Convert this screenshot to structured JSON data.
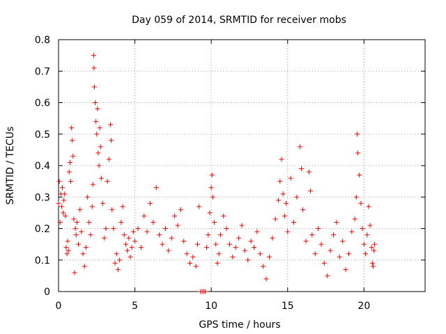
{
  "chart_data": {
    "type": "scatter",
    "title": "Day 059 of 2014, SRMTID for receiver mobs",
    "xlabel": "GPS time / hours",
    "ylabel": "SRMTID / TECUs",
    "xlim": [
      0,
      24
    ],
    "ylim": [
      0,
      0.8
    ],
    "x_ticks": [
      "0",
      "5",
      "10",
      "15",
      "20"
    ],
    "y_ticks": [
      "0",
      "0.1",
      "0.2",
      "0.3",
      "0.4",
      "0.5",
      "0.6",
      "0.7",
      "0.8"
    ],
    "grid": true,
    "marker": "+",
    "series": [
      {
        "name": "SRMTID",
        "color": "#ff0000",
        "points": [
          [
            0.0,
            0.28
          ],
          [
            0.05,
            0.35
          ],
          [
            0.1,
            0.22
          ],
          [
            0.15,
            0.31
          ],
          [
            0.2,
            0.27
          ],
          [
            0.25,
            0.33
          ],
          [
            0.3,
            0.25
          ],
          [
            0.35,
            0.29
          ],
          [
            0.4,
            0.31
          ],
          [
            0.45,
            0.24
          ],
          [
            0.5,
            0.14
          ],
          [
            0.55,
            0.12
          ],
          [
            0.6,
            0.16
          ],
          [
            0.65,
            0.13
          ],
          [
            0.7,
            0.38
          ],
          [
            0.75,
            0.41
          ],
          [
            0.8,
            0.35
          ],
          [
            0.85,
            0.52
          ],
          [
            0.9,
            0.48
          ],
          [
            0.95,
            0.43
          ],
          [
            1.0,
            0.23
          ],
          [
            1.05,
            0.06
          ],
          [
            1.1,
            0.2
          ],
          [
            1.15,
            0.18
          ],
          [
            1.2,
            0.22
          ],
          [
            1.3,
            0.15
          ],
          [
            1.4,
            0.26
          ],
          [
            1.5,
            0.19
          ],
          [
            1.6,
            0.12
          ],
          [
            1.7,
            0.08
          ],
          [
            1.8,
            0.14
          ],
          [
            1.9,
            0.3
          ],
          [
            2.0,
            0.22
          ],
          [
            2.1,
            0.18
          ],
          [
            2.2,
            0.27
          ],
          [
            2.25,
            0.34
          ],
          [
            2.3,
            0.75
          ],
          [
            2.32,
            0.71
          ],
          [
            2.35,
            0.65
          ],
          [
            2.4,
            0.6
          ],
          [
            2.45,
            0.54
          ],
          [
            2.5,
            0.5
          ],
          [
            2.55,
            0.58
          ],
          [
            2.6,
            0.44
          ],
          [
            2.65,
            0.4
          ],
          [
            2.7,
            0.52
          ],
          [
            2.75,
            0.46
          ],
          [
            2.8,
            0.36
          ],
          [
            2.9,
            0.28
          ],
          [
            3.0,
            0.17
          ],
          [
            3.1,
            0.2
          ],
          [
            3.2,
            0.35
          ],
          [
            3.3,
            0.42
          ],
          [
            3.4,
            0.53
          ],
          [
            3.45,
            0.48
          ],
          [
            3.5,
            0.26
          ],
          [
            3.6,
            0.2
          ],
          [
            3.7,
            0.09
          ],
          [
            3.8,
            0.12
          ],
          [
            3.9,
            0.07
          ],
          [
            4.0,
            0.1
          ],
          [
            4.1,
            0.22
          ],
          [
            4.2,
            0.27
          ],
          [
            4.3,
            0.18
          ],
          [
            4.4,
            0.15
          ],
          [
            4.5,
            0.13
          ],
          [
            4.6,
            0.17
          ],
          [
            4.7,
            0.11
          ],
          [
            4.8,
            0.14
          ],
          [
            4.9,
            0.19
          ],
          [
            5.0,
            0.16
          ],
          [
            5.2,
            0.2
          ],
          [
            5.4,
            0.14
          ],
          [
            5.6,
            0.24
          ],
          [
            5.8,
            0.19
          ],
          [
            6.0,
            0.28
          ],
          [
            6.2,
            0.22
          ],
          [
            6.4,
            0.33
          ],
          [
            6.6,
            0.18
          ],
          [
            6.8,
            0.15
          ],
          [
            7.0,
            0.2
          ],
          [
            7.2,
            0.13
          ],
          [
            7.4,
            0.17
          ],
          [
            7.6,
            0.24
          ],
          [
            7.8,
            0.21
          ],
          [
            8.0,
            0.26
          ],
          [
            8.2,
            0.16
          ],
          [
            8.4,
            0.12
          ],
          [
            8.6,
            0.09
          ],
          [
            8.8,
            0.11
          ],
          [
            9.0,
            0.08
          ],
          [
            9.1,
            0.15
          ],
          [
            9.2,
            0.27
          ],
          [
            9.3,
            0.0
          ],
          [
            9.4,
            0.0
          ],
          [
            9.5,
            0.0
          ],
          [
            9.6,
            0.0
          ],
          [
            9.7,
            0.14
          ],
          [
            9.8,
            0.18
          ],
          [
            9.9,
            0.25
          ],
          [
            10.0,
            0.33
          ],
          [
            10.05,
            0.37
          ],
          [
            10.1,
            0.3
          ],
          [
            10.2,
            0.22
          ],
          [
            10.3,
            0.15
          ],
          [
            10.4,
            0.09
          ],
          [
            10.5,
            0.12
          ],
          [
            10.6,
            0.18
          ],
          [
            10.8,
            0.24
          ],
          [
            11.0,
            0.2
          ],
          [
            11.2,
            0.15
          ],
          [
            11.4,
            0.11
          ],
          [
            11.6,
            0.14
          ],
          [
            11.8,
            0.17
          ],
          [
            12.0,
            0.21
          ],
          [
            12.2,
            0.13
          ],
          [
            12.4,
            0.1
          ],
          [
            12.6,
            0.16
          ],
          [
            12.8,
            0.14
          ],
          [
            13.0,
            0.19
          ],
          [
            13.2,
            0.12
          ],
          [
            13.4,
            0.08
          ],
          [
            13.6,
            0.04
          ],
          [
            13.8,
            0.11
          ],
          [
            14.0,
            0.17
          ],
          [
            14.2,
            0.23
          ],
          [
            14.4,
            0.29
          ],
          [
            14.5,
            0.35
          ],
          [
            14.6,
            0.42
          ],
          [
            14.7,
            0.31
          ],
          [
            14.8,
            0.24
          ],
          [
            14.9,
            0.28
          ],
          [
            15.0,
            0.19
          ],
          [
            15.2,
            0.36
          ],
          [
            15.4,
            0.22
          ],
          [
            15.6,
            0.3
          ],
          [
            15.8,
            0.46
          ],
          [
            15.9,
            0.39
          ],
          [
            16.0,
            0.26
          ],
          [
            16.2,
            0.16
          ],
          [
            16.4,
            0.38
          ],
          [
            16.5,
            0.32
          ],
          [
            16.6,
            0.18
          ],
          [
            16.8,
            0.12
          ],
          [
            17.0,
            0.2
          ],
          [
            17.2,
            0.15
          ],
          [
            17.4,
            0.09
          ],
          [
            17.6,
            0.05
          ],
          [
            17.8,
            0.13
          ],
          [
            18.0,
            0.18
          ],
          [
            18.2,
            0.22
          ],
          [
            18.4,
            0.11
          ],
          [
            18.6,
            0.16
          ],
          [
            18.8,
            0.07
          ],
          [
            19.0,
            0.12
          ],
          [
            19.2,
            0.19
          ],
          [
            19.4,
            0.23
          ],
          [
            19.5,
            0.3
          ],
          [
            19.55,
            0.5
          ],
          [
            19.6,
            0.44
          ],
          [
            19.7,
            0.37
          ],
          [
            19.8,
            0.28
          ],
          [
            19.9,
            0.2
          ],
          [
            20.0,
            0.15
          ],
          [
            20.1,
            0.12
          ],
          [
            20.2,
            0.18
          ],
          [
            20.3,
            0.27
          ],
          [
            20.4,
            0.21
          ],
          [
            20.5,
            0.14
          ],
          [
            20.55,
            0.09
          ],
          [
            20.6,
            0.08
          ],
          [
            20.65,
            0.13
          ],
          [
            20.7,
            0.15
          ]
        ]
      }
    ]
  }
}
